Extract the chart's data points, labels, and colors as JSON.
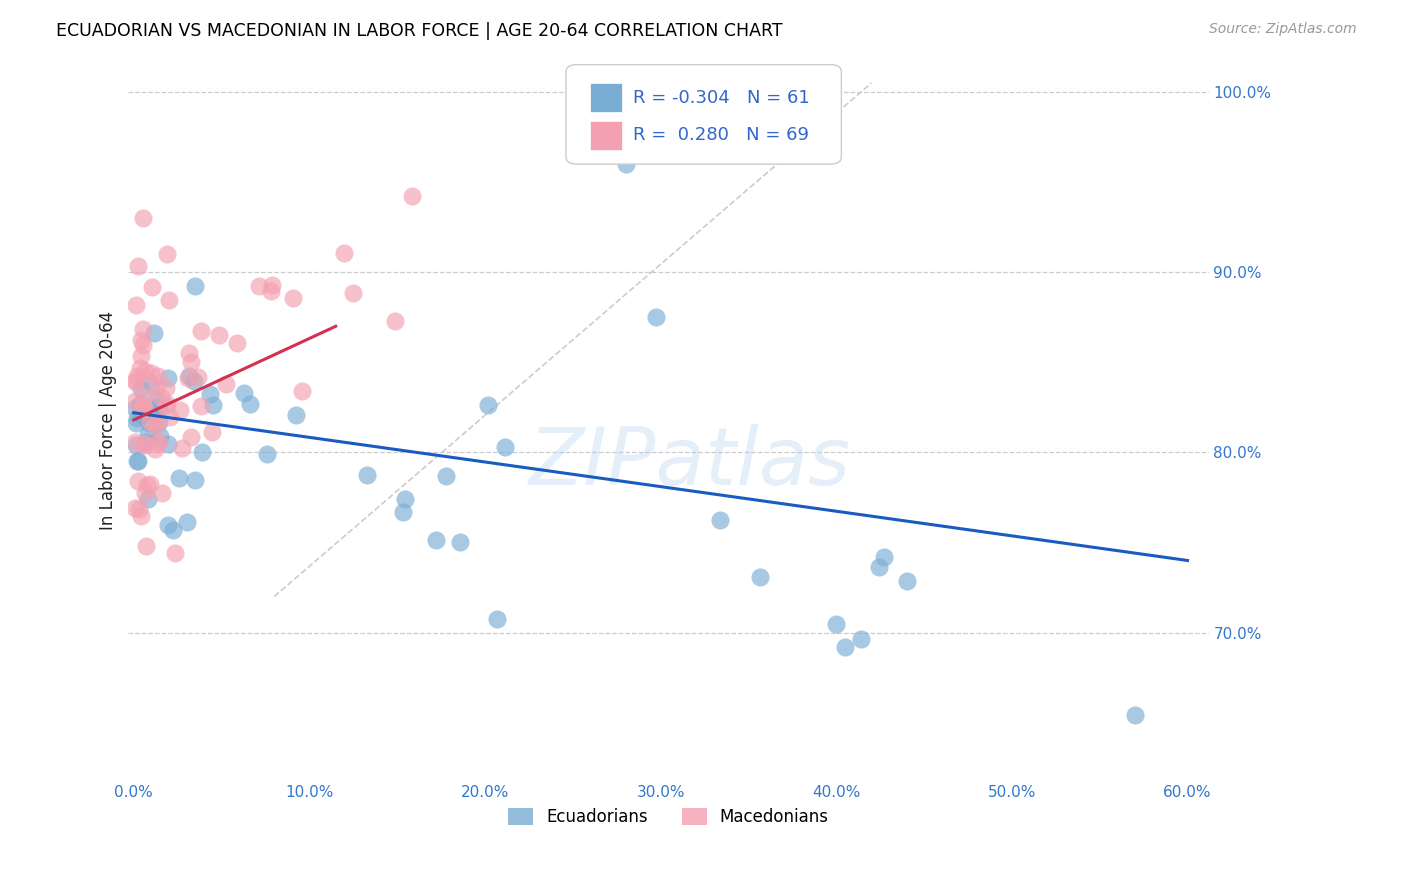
{
  "title": "ECUADORIAN VS MACEDONIAN IN LABOR FORCE | AGE 20-64 CORRELATION CHART",
  "source": "Source: ZipAtlas.com",
  "ylabel": "In Labor Force | Age 20-64",
  "xlim": [
    -0.003,
    0.612
  ],
  "ylim": [
    0.618,
    1.018
  ],
  "xticks": [
    0.0,
    0.1,
    0.2,
    0.3,
    0.4,
    0.5,
    0.6
  ],
  "yticks": [
    0.7,
    0.8,
    0.9,
    1.0
  ],
  "ytick_labels": [
    "70.0%",
    "80.0%",
    "90.0%",
    "100.0%"
  ],
  "xtick_labels": [
    "0.0%",
    "10.0%",
    "20.0%",
    "30.0%",
    "40.0%",
    "50.0%",
    "60.0%"
  ],
  "ecuadorian_color": "#7aadd4",
  "macedonian_color": "#f4a0b0",
  "trend_blue": "#1a5bbf",
  "trend_pink": "#d43050",
  "diag_color": "#cccccc",
  "legend_R_blue": "-0.304",
  "legend_N_blue": "61",
  "legend_R_pink": "0.280",
  "legend_N_pink": "69",
  "watermark": "ZIPatlas",
  "blue_trend": [
    0.0,
    0.822,
    0.6,
    0.74
  ],
  "pink_trend": [
    0.0,
    0.818,
    0.115,
    0.87
  ],
  "diag_line": [
    0.08,
    0.72,
    0.42,
    1.005
  ]
}
